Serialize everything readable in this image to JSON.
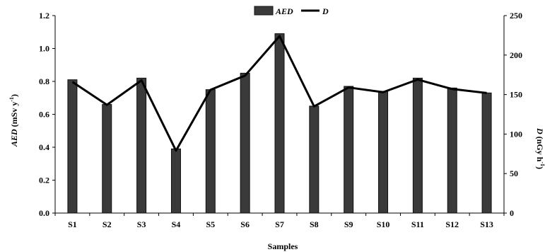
{
  "chart_data": {
    "type": "bar+line",
    "categories": [
      "S1",
      "S2",
      "S3",
      "S4",
      "S5",
      "S6",
      "S7",
      "S8",
      "S9",
      "S10",
      "S11",
      "S12",
      "S13"
    ],
    "series": [
      {
        "name": "AED",
        "type": "bar",
        "axis": "left",
        "values": [
          0.81,
          0.66,
          0.82,
          0.39,
          0.75,
          0.85,
          1.09,
          0.65,
          0.77,
          0.74,
          0.82,
          0.76,
          0.73
        ]
      },
      {
        "name": "D",
        "type": "line",
        "axis": "right",
        "values": [
          166,
          137,
          168,
          79,
          156,
          174,
          224,
          135,
          159,
          153,
          169,
          157,
          152
        ]
      }
    ],
    "xlabel": "Samples",
    "ylabel_left": {
      "main": "AED",
      "unit": " (mSv y",
      "exp": "-1",
      "close": ")"
    },
    "ylabel_right": {
      "main": "D",
      "unit": " (nGy h",
      "exp": "-1",
      "close": ")"
    },
    "ylim_left": [
      0,
      1.2
    ],
    "yticks_left": [
      "0.0",
      "0.2",
      "0.4",
      "0.6",
      "0.8",
      "1.0",
      "1.2"
    ],
    "ylim_right": [
      0,
      250
    ],
    "yticks_right": [
      "0",
      "50",
      "100",
      "150",
      "200",
      "250"
    ],
    "legend": {
      "position": "top-center",
      "entries": [
        "AED",
        "D"
      ]
    },
    "grid": false,
    "colors": {
      "bar": "#3a3a3a",
      "bar_edge": "#111111",
      "line": "#000000"
    }
  }
}
